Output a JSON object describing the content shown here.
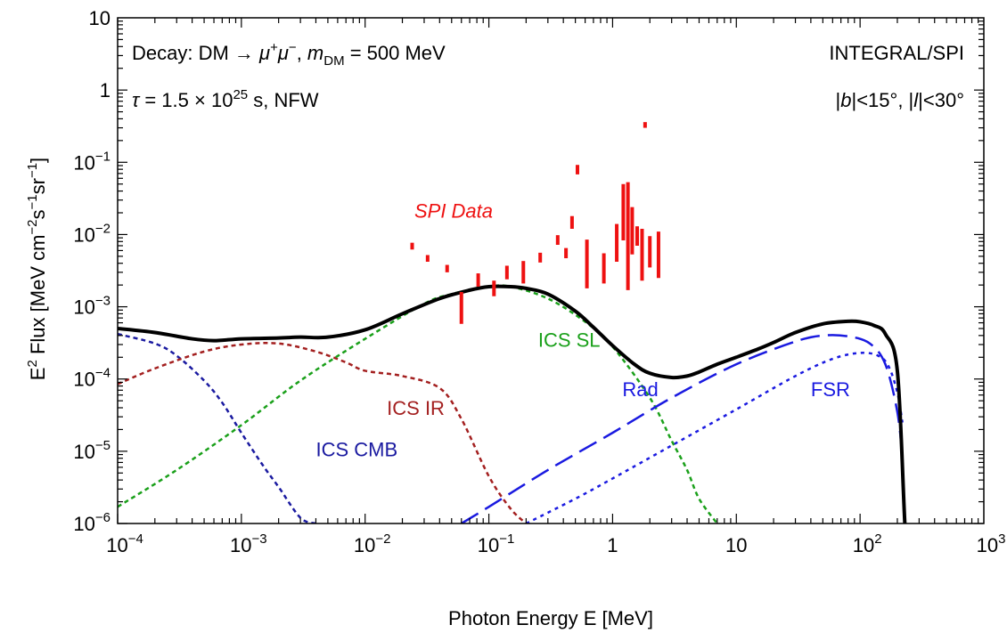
{
  "chart_data": {
    "type": "line",
    "xlabel": "Photon Energy E [MeV]",
    "ylabel_parts": [
      "E",
      "2",
      " Flux [MeV cm",
      "−2",
      "s",
      "−1",
      "sr",
      "−1",
      "]"
    ],
    "x_scale": "log",
    "y_scale": "log",
    "xlim": [
      0.0001,
      1000
    ],
    "ylim": [
      1e-06,
      10
    ],
    "x_ticks": [
      {
        "value": 0.0001,
        "base": "10",
        "exp": "−4"
      },
      {
        "value": 0.001,
        "base": "10",
        "exp": "−3"
      },
      {
        "value": 0.01,
        "base": "10",
        "exp": "−2"
      },
      {
        "value": 0.1,
        "base": "10",
        "exp": "−1"
      },
      {
        "value": 1,
        "base": "1",
        "exp": ""
      },
      {
        "value": 10,
        "base": "10",
        "exp": ""
      },
      {
        "value": 100,
        "base": "10",
        "exp": "2"
      },
      {
        "value": 1000,
        "base": "10",
        "exp": "3"
      }
    ],
    "y_ticks": [
      {
        "value": 1e-06,
        "base": "10",
        "exp": "−6"
      },
      {
        "value": 1e-05,
        "base": "10",
        "exp": "−5"
      },
      {
        "value": 0.0001,
        "base": "10",
        "exp": "−4"
      },
      {
        "value": 0.001,
        "base": "10",
        "exp": "−3"
      },
      {
        "value": 0.01,
        "base": "10",
        "exp": "−2"
      },
      {
        "value": 0.1,
        "base": "10",
        "exp": "−1"
      },
      {
        "value": 1,
        "base": "1",
        "exp": ""
      },
      {
        "value": 10,
        "base": "10",
        "exp": ""
      }
    ],
    "annotations": {
      "left_line1": {
        "prefix": "Decay: DM → ",
        "mu": "μ",
        "plus": "+",
        "minus": "−",
        "mass_m": "m",
        "mass_sub": "DM",
        "mass_val": " = 500 MeV"
      },
      "left_line2": {
        "tau": "τ",
        "text1": " = 1.5 × 10",
        "exp": "25",
        "text2": " s, NFW"
      },
      "right_line1": "INTEGRAL/SPI",
      "right_line2": {
        "b": "b",
        "text1": "|<15°, |",
        "l": "l",
        "text2": "|<30°"
      }
    },
    "series": [
      {
        "name": "ICS CMB",
        "color": "#1a1aa0",
        "dash": "5,4",
        "width": 2.5,
        "label_at": [
          0.004,
          8.5e-06
        ],
        "x": [
          0.0001,
          0.0002,
          0.0003,
          0.0005,
          0.0007,
          0.001,
          0.0015,
          0.002,
          0.003,
          0.004
        ],
        "y": [
          0.00042,
          0.00031,
          0.00021,
          9.5e-05,
          4.7e-05,
          1.8e-05,
          6.3e-06,
          3.2e-06,
          1.2e-06,
          1e-06
        ]
      },
      {
        "name": "ICS IR",
        "color": "#a31f1f",
        "dash": "5,4",
        "width": 2.5,
        "label_at": [
          0.015,
          3.2e-05
        ],
        "x": [
          0.0001,
          0.0002,
          0.0005,
          0.001,
          0.002,
          0.004,
          0.007,
          0.01,
          0.02,
          0.04,
          0.06,
          0.1,
          0.15,
          0.2
        ],
        "y": [
          8.5e-05,
          0.00014,
          0.00024,
          0.0003,
          0.00031,
          0.00024,
          0.00017,
          0.00013,
          0.00011,
          7.5e-05,
          2.8e-05,
          4.5e-06,
          1.6e-06,
          1e-06
        ]
      },
      {
        "name": "ICS SL",
        "color": "#1aa01a",
        "dash": "5,4",
        "width": 2.5,
        "label_at": [
          0.25,
          0.00028
        ],
        "x": [
          0.0001,
          0.0003,
          0.001,
          0.003,
          0.01,
          0.03,
          0.05,
          0.1,
          0.15,
          0.3,
          0.6,
          1,
          2,
          3,
          4,
          5,
          7
        ],
        "y": [
          1.7e-06,
          5.5e-06,
          2.3e-05,
          9.5e-05,
          0.00036,
          0.0011,
          0.0015,
          0.0019,
          0.0019,
          0.0013,
          0.00062,
          0.00028,
          5.5e-05,
          1.4e-05,
          5.5e-06,
          2.2e-06,
          1e-06
        ]
      },
      {
        "name": "Rad",
        "color": "#1a1ae0",
        "dash": "22,9",
        "width": 2.5,
        "label_at": [
          1.2,
          5.8e-05
        ],
        "x": [
          0.06,
          0.1,
          0.3,
          1,
          3,
          10,
          30,
          50,
          80,
          120,
          160,
          200,
          220
        ],
        "y": [
          1e-06,
          1.7e-06,
          5.5e-06,
          1.8e-05,
          5.5e-05,
          0.00016,
          0.00033,
          0.0004,
          0.00039,
          0.00031,
          0.00016,
          3.5e-05,
          8e-06
        ]
      },
      {
        "name": "FSR",
        "color": "#1a1ae0",
        "dash": "4,5",
        "width": 2.5,
        "label_at": [
          40,
          5.8e-05
        ],
        "x": [
          0.2,
          0.5,
          1,
          3,
          10,
          30,
          60,
          100,
          140,
          170,
          200,
          220
        ],
        "y": [
          1e-06,
          2.2e-06,
          4.2e-06,
          1.2e-05,
          3.8e-05,
          0.00011,
          0.00019,
          0.00023,
          0.00021,
          0.00015,
          6.5e-05,
          2.5e-05
        ]
      },
      {
        "name": "",
        "color": "#000000",
        "dash": "",
        "width": 4,
        "x": [
          0.0001,
          0.0002,
          0.0004,
          0.0006,
          0.001,
          0.002,
          0.003,
          0.005,
          0.01,
          0.02,
          0.04,
          0.07,
          0.1,
          0.15,
          0.2,
          0.3,
          0.5,
          0.7,
          1,
          1.5,
          2,
          3,
          4,
          5,
          7,
          10,
          15,
          20,
          30,
          50,
          80,
          100,
          130,
          160,
          200,
          230,
          250
        ],
        "y": [
          0.0005,
          0.00044,
          0.00036,
          0.00034,
          0.00036,
          0.00037,
          0.00038,
          0.00038,
          0.00048,
          0.0008,
          0.0013,
          0.0017,
          0.0019,
          0.0019,
          0.0018,
          0.0015,
          0.00087,
          0.00052,
          0.00029,
          0.00016,
          0.00012,
          0.000105,
          0.00011,
          0.000125,
          0.00016,
          0.0002,
          0.00026,
          0.00032,
          0.00044,
          0.00058,
          0.00063,
          0.00062,
          0.00055,
          0.00042,
          0.00013,
          1e-06,
          1e-07
        ]
      }
    ],
    "spi_data": {
      "name": "SPI Data",
      "color": "#ee1111",
      "label_at": [
        0.025,
        0.017
      ],
      "bars": [
        {
          "x": 0.024,
          "lo": 0.0062,
          "hi": 0.0077
        },
        {
          "x": 0.032,
          "lo": 0.0042,
          "hi": 0.0052
        },
        {
          "x": 0.046,
          "lo": 0.003,
          "hi": 0.0038
        },
        {
          "x": 0.06,
          "lo": 0.00058,
          "hi": 0.0016
        },
        {
          "x": 0.082,
          "lo": 0.0019,
          "hi": 0.0029
        },
        {
          "x": 0.11,
          "lo": 0.0014,
          "hi": 0.0023
        },
        {
          "x": 0.14,
          "lo": 0.0024,
          "hi": 0.0037
        },
        {
          "x": 0.19,
          "lo": 0.0021,
          "hi": 0.0043
        },
        {
          "x": 0.26,
          "lo": 0.0041,
          "hi": 0.0056
        },
        {
          "x": 0.36,
          "lo": 0.0072,
          "hi": 0.0098
        },
        {
          "x": 0.42,
          "lo": 0.0047,
          "hi": 0.0065
        },
        {
          "x": 0.47,
          "lo": 0.012,
          "hi": 0.018
        },
        {
          "x": 0.52,
          "lo": 0.068,
          "hi": 0.092
        },
        {
          "x": 0.62,
          "lo": 0.0018,
          "hi": 0.0085
        },
        {
          "x": 0.85,
          "lo": 0.0021,
          "hi": 0.0055
        },
        {
          "x": 1.08,
          "lo": 0.0042,
          "hi": 0.014
        },
        {
          "x": 1.22,
          "lo": 0.0083,
          "hi": 0.05
        },
        {
          "x": 1.33,
          "lo": 0.0017,
          "hi": 0.053
        },
        {
          "x": 1.44,
          "lo": 0.0053,
          "hi": 0.024
        },
        {
          "x": 1.58,
          "lo": 0.007,
          "hi": 0.013
        },
        {
          "x": 1.73,
          "lo": 0.0023,
          "hi": 0.012
        },
        {
          "x": 1.83,
          "lo": 0.3,
          "hi": 0.36
        },
        {
          "x": 2.0,
          "lo": 0.0035,
          "hi": 0.0095
        },
        {
          "x": 2.35,
          "lo": 0.0025,
          "hi": 0.011
        }
      ]
    },
    "grid": false,
    "legend": "none"
  }
}
